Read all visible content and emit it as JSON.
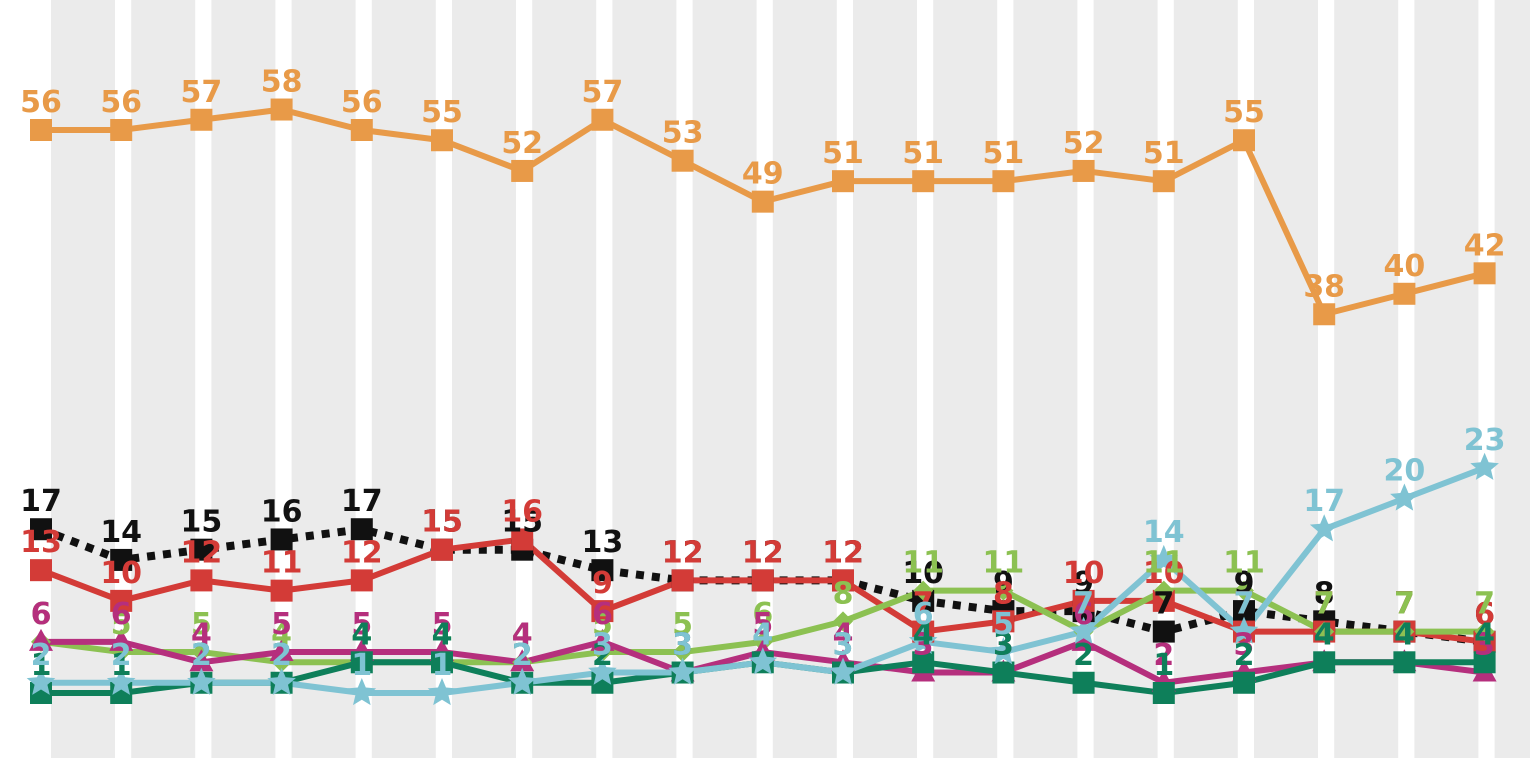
{
  "chart_data": {
    "type": "line",
    "title": "",
    "xlabel": "",
    "ylabel": "",
    "ylim": [
      0,
      60
    ],
    "grid": "vertical-bands",
    "x": [
      1,
      2,
      3,
      4,
      5,
      6,
      7,
      8,
      9,
      10,
      11,
      12,
      13,
      14,
      15,
      16,
      17,
      18,
      19
    ],
    "series": [
      {
        "color": "#e89a48",
        "marker": "square",
        "dash": false,
        "values": [
          56,
          56,
          57,
          58,
          56,
          55,
          52,
          57,
          53,
          49,
          51,
          51,
          51,
          52,
          51,
          55,
          38,
          40,
          42
        ]
      },
      {
        "color": "#111111",
        "marker": "square",
        "dash": true,
        "values": [
          17,
          14,
          15,
          16,
          17,
          15,
          15,
          13,
          12,
          12,
          12,
          10,
          9,
          9,
          7,
          9,
          8,
          7,
          6
        ]
      },
      {
        "color": "#d33b37",
        "marker": "square",
        "dash": false,
        "values": [
          13,
          10,
          12,
          11,
          12,
          15,
          16,
          9,
          12,
          12,
          12,
          7,
          8,
          10,
          10,
          7,
          7,
          7,
          6
        ]
      },
      {
        "color": "#8cc152",
        "marker": "diamond",
        "dash": false,
        "values": [
          6,
          5,
          5,
          4,
          4,
          4,
          4,
          5,
          5,
          6,
          8,
          11,
          11,
          7,
          11,
          11,
          7,
          7,
          7
        ]
      },
      {
        "color": "#b52f7d",
        "marker": "triangle",
        "dash": false,
        "values": [
          6,
          6,
          4,
          5,
          5,
          5,
          4,
          6,
          3,
          5,
          4,
          3,
          3,
          6,
          2,
          3,
          4,
          4,
          3
        ]
      },
      {
        "color": "#0e7f5a",
        "marker": "square",
        "dash": false,
        "values": [
          1,
          1,
          2,
          2,
          4,
          4,
          2,
          2,
          3,
          4,
          3,
          4,
          3,
          2,
          1,
          2,
          4,
          4,
          4
        ]
      },
      {
        "color": "#7fc3d3",
        "marker": "star",
        "dash": false,
        "values": [
          2,
          2,
          2,
          2,
          1,
          1,
          2,
          3,
          3,
          4,
          3,
          6,
          5,
          7,
          14,
          7,
          17,
          20,
          23
        ]
      }
    ]
  }
}
